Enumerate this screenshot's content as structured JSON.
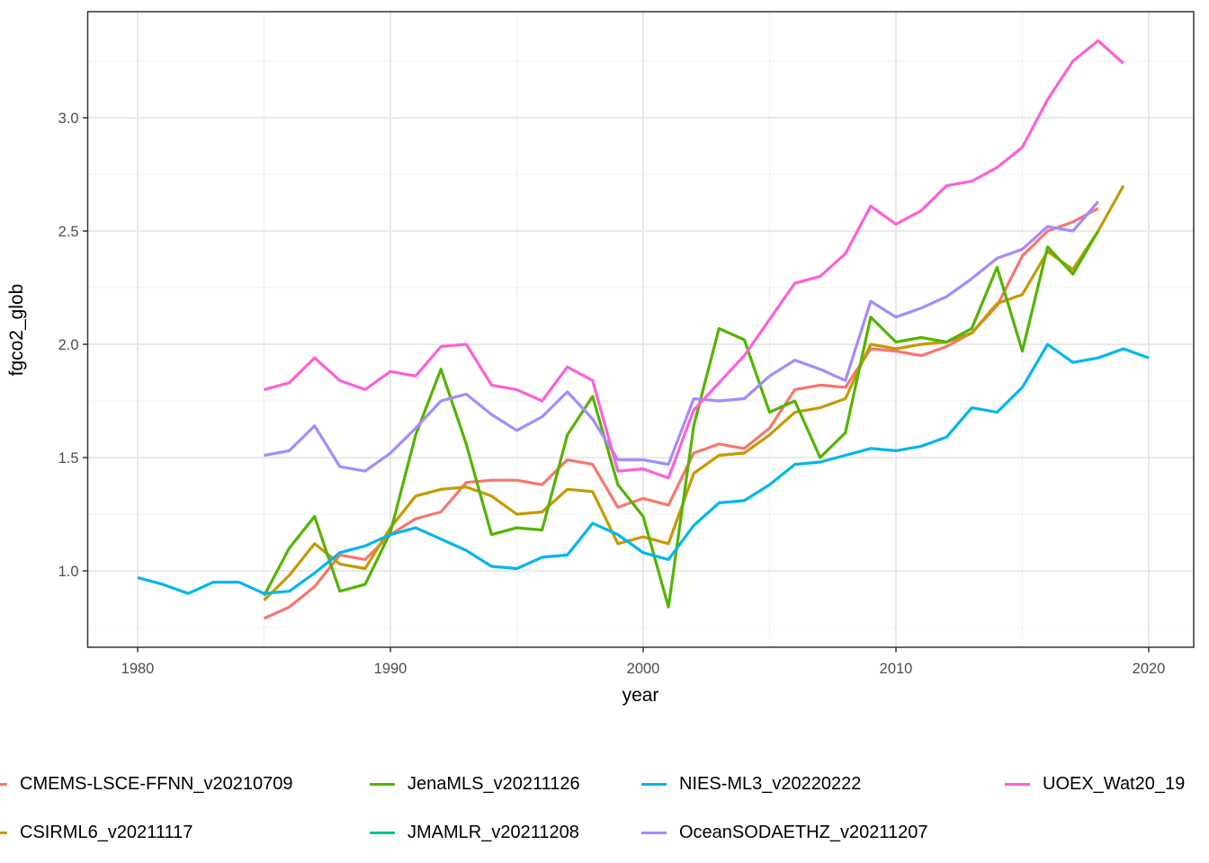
{
  "chart_data": {
    "type": "line",
    "title": "",
    "xlabel": "year",
    "ylabel": "fgco2_glob",
    "x_tick_labels": [
      "1980",
      "1990",
      "2000",
      "2010",
      "2020"
    ],
    "x_tick_values": [
      1980,
      1990,
      2000,
      2010,
      2020
    ],
    "x_minor": [
      1985,
      1995,
      2005,
      2015
    ],
    "y_tick_labels": [
      "1.0",
      "1.5",
      "2.0",
      "2.5",
      "3.0"
    ],
    "y_tick_values": [
      1.0,
      1.5,
      2.0,
      2.5,
      3.0
    ],
    "y_minor": [
      0.75,
      1.25,
      1.75,
      2.25,
      2.75,
      3.25
    ],
    "xlim": [
      1978.0,
      2021.8
    ],
    "ylim": [
      0.66,
      3.47
    ],
    "grid": "major+minor",
    "legend_position": "bottom",
    "series": [
      {
        "name": "CMEMS-LSCE-FFNN_v20210709",
        "color": "#F8766D",
        "start_year": 1985,
        "values": [
          0.79,
          0.84,
          0.93,
          1.07,
          1.05,
          1.16,
          1.23,
          1.26,
          1.39,
          1.4,
          1.4,
          1.38,
          1.49,
          1.47,
          1.28,
          1.32,
          1.29,
          1.52,
          1.56,
          1.54,
          1.63,
          1.8,
          1.82,
          1.81,
          1.98,
          1.97,
          1.95,
          1.99,
          2.05,
          2.17,
          2.39,
          2.5,
          2.54,
          2.6
        ]
      },
      {
        "name": "CSIRML6_v20211117",
        "color": "#C49A00",
        "start_year": 1985,
        "values": [
          0.87,
          0.98,
          1.12,
          1.03,
          1.01,
          1.19,
          1.33,
          1.36,
          1.37,
          1.33,
          1.25,
          1.26,
          1.36,
          1.35,
          1.12,
          1.15,
          1.12,
          1.43,
          1.51,
          1.52,
          1.6,
          1.7,
          1.72,
          1.76,
          2.0,
          1.98,
          2.0,
          2.01,
          2.05,
          2.18,
          2.22,
          2.41,
          2.33,
          2.5,
          2.7
        ]
      },
      {
        "name": "JenaMLS_v20211126",
        "color": "#53B400",
        "start_year": 1985,
        "values": [
          0.89,
          1.1,
          1.24,
          0.91,
          0.94,
          1.17,
          1.6,
          1.89,
          1.56,
          1.16,
          1.19,
          1.18,
          1.6,
          1.77,
          1.38,
          1.24,
          0.84,
          1.64,
          2.07,
          2.02,
          1.7,
          1.75,
          1.5,
          1.61,
          2.12,
          2.01,
          2.03,
          2.01,
          2.07,
          2.34,
          1.97,
          2.43,
          2.31,
          2.5
        ]
      },
      {
        "name": "JMAMLR_v20211208",
        "color": "#00C094",
        "start_year": null,
        "visible_in_plot": false,
        "values": []
      },
      {
        "name": "NIES-ML3_v20220222",
        "color": "#00B6EB",
        "start_year": 1980,
        "values": [
          0.97,
          0.94,
          0.9,
          0.95,
          0.95,
          0.9,
          0.91,
          0.99,
          1.08,
          1.11,
          1.16,
          1.19,
          1.14,
          1.09,
          1.02,
          1.01,
          1.06,
          1.07,
          1.21,
          1.16,
          1.08,
          1.05,
          1.2,
          1.3,
          1.31,
          1.38,
          1.47,
          1.48,
          1.51,
          1.54,
          1.53,
          1.55,
          1.59,
          1.72,
          1.7,
          1.81,
          2.0,
          1.92,
          1.94,
          1.98,
          1.94
        ]
      },
      {
        "name": "OceanSODAETHZ_v20211207",
        "color": "#A58AFF",
        "start_year": 1985,
        "values": [
          1.51,
          1.53,
          1.64,
          1.46,
          1.44,
          1.52,
          1.63,
          1.75,
          1.78,
          1.69,
          1.62,
          1.68,
          1.79,
          1.67,
          1.49,
          1.49,
          1.47,
          1.76,
          1.75,
          1.76,
          1.86,
          1.93,
          1.89,
          1.84,
          2.19,
          2.12,
          2.16,
          2.21,
          2.29,
          2.38,
          2.42,
          2.52,
          2.5,
          2.63
        ]
      },
      {
        "name": "UOEX_Wat20_19",
        "color": "#FB61D7",
        "start_year": 1985,
        "values": [
          1.8,
          1.83,
          1.94,
          1.84,
          1.8,
          1.88,
          1.86,
          1.99,
          2.0,
          1.82,
          1.8,
          1.75,
          1.9,
          1.84,
          1.44,
          1.45,
          1.41,
          1.71,
          1.83,
          1.95,
          2.11,
          2.27,
          2.3,
          2.4,
          2.61,
          2.53,
          2.59,
          2.7,
          2.72,
          2.78,
          2.87,
          3.08,
          3.25,
          3.34,
          3.24
        ]
      }
    ]
  },
  "legend": {
    "items": [
      {
        "label": "CMEMS-LSCE-FFNN_v20210709",
        "color": "#F8766D",
        "col": 0,
        "row": 0
      },
      {
        "label": "CSIRML6_v20211117",
        "color": "#C49A00",
        "col": 0,
        "row": 1
      },
      {
        "label": "JenaMLS_v20211126",
        "color": "#53B400",
        "col": 1,
        "row": 0
      },
      {
        "label": "JMAMLR_v20211208",
        "color": "#00C094",
        "col": 1,
        "row": 1
      },
      {
        "label": "NIES-ML3_v20220222",
        "color": "#00B6EB",
        "col": 2,
        "row": 0
      },
      {
        "label": "OceanSODAETHZ_v20211207",
        "color": "#A58AFF",
        "col": 2,
        "row": 1
      },
      {
        "label": "UOEX_Wat20_19",
        "color": "#FB61D7",
        "col": 3,
        "row": 0
      }
    ]
  },
  "style": {
    "panel_border_color": "#333333",
    "major_grid_color": "#E6E6E6",
    "minor_grid_color": "#F0F0F0",
    "tick_color": "#333333",
    "tick_label_color": "#4D4D4D"
  }
}
